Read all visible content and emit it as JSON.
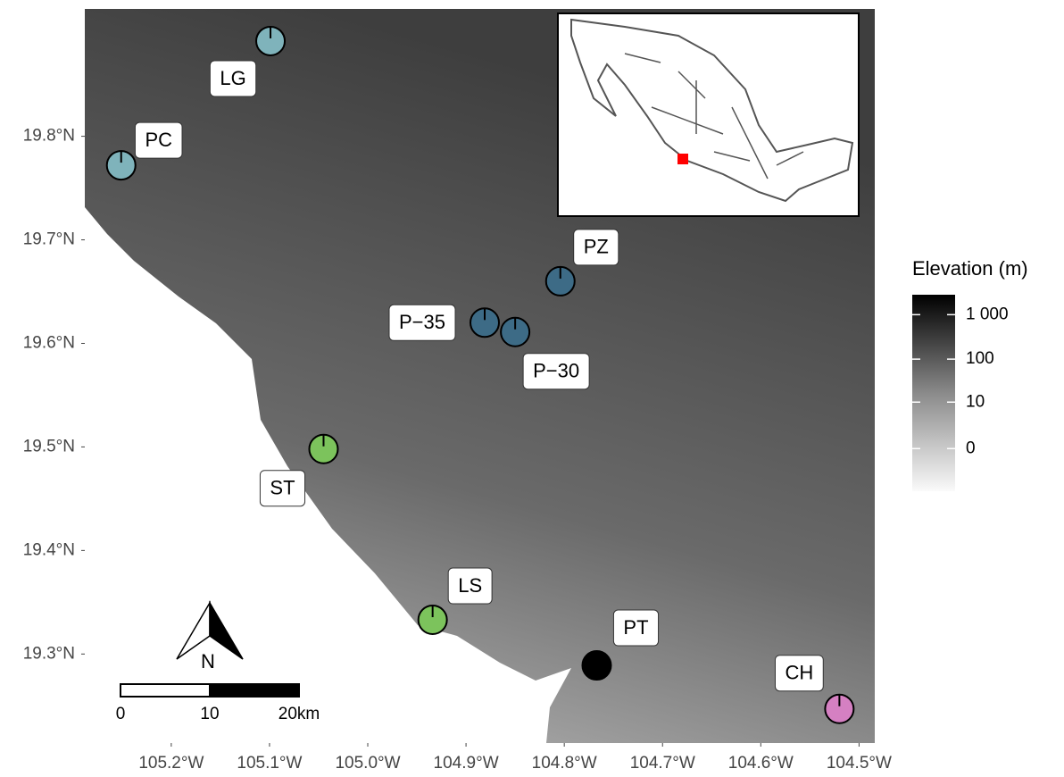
{
  "map": {
    "lonlim": [
      -105.288,
      -104.484
    ],
    "latlim": [
      19.214,
      19.923
    ],
    "lon_ticks": [
      {
        "value": -105.2,
        "label": "105.2°W"
      },
      {
        "value": -105.1,
        "label": "105.1°W"
      },
      {
        "value": -105.0,
        "label": "105.0°W"
      },
      {
        "value": -104.9,
        "label": "104.9°W"
      },
      {
        "value": -104.8,
        "label": "104.8°W"
      },
      {
        "value": -104.7,
        "label": "104.7°W"
      },
      {
        "value": -104.6,
        "label": "104.6°W"
      },
      {
        "value": -104.5,
        "label": "104.5°W"
      }
    ],
    "lat_ticks": [
      {
        "value": 19.3,
        "label": "19.3°N"
      },
      {
        "value": 19.4,
        "label": "19.4°N"
      },
      {
        "value": 19.5,
        "label": "19.5°N"
      },
      {
        "value": 19.6,
        "label": "19.6°N"
      },
      {
        "value": 19.7,
        "label": "19.7°N"
      },
      {
        "value": 19.8,
        "label": "19.8°N"
      }
    ],
    "sites": [
      {
        "label": "LG",
        "lon": -105.099,
        "lat": 19.892,
        "color": "#7fb3bb"
      },
      {
        "label": "PC",
        "lon": -105.251,
        "lat": 19.772,
        "color": "#7fb3bb"
      },
      {
        "label": "PZ",
        "lon": -104.804,
        "lat": 19.66,
        "color": "#3d6b86"
      },
      {
        "label": "P−35",
        "lon": -104.881,
        "lat": 19.62,
        "color": "#3d6b86"
      },
      {
        "label": "P−30",
        "lon": -104.85,
        "lat": 19.611,
        "color": "#3d6b86"
      },
      {
        "label": "ST",
        "lon": -105.045,
        "lat": 19.498,
        "color": "#7cc35c"
      },
      {
        "label": "LS",
        "lon": -104.934,
        "lat": 19.333,
        "color": "#7cc35c"
      },
      {
        "label": "PT",
        "lon": -104.767,
        "lat": 19.289,
        "color": "#000000"
      },
      {
        "label": "CH",
        "lon": -104.52,
        "lat": 19.247,
        "color": "#d580c2"
      }
    ],
    "north": "N",
    "scalebar": {
      "ticks": [
        0,
        10,
        {
          "value": 20,
          "label": "20km"
        }
      ]
    }
  },
  "legend": {
    "title": "Elevation (m)",
    "lim": [
      -8,
      2800
    ],
    "ticks": [
      {
        "value": 1000,
        "label": "1 000"
      },
      100,
      10,
      0
    ]
  }
}
